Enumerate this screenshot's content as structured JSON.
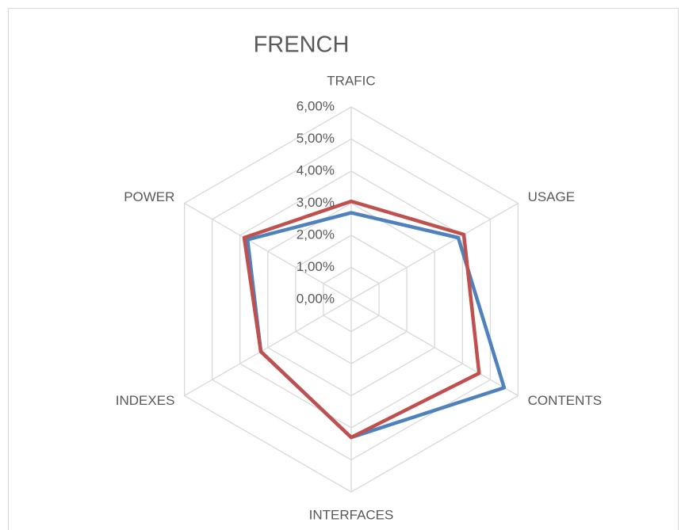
{
  "chart_data": {
    "type": "radar",
    "title": "FRENCH",
    "categories": [
      "TRAFIC",
      "USAGE",
      "CONTENTS",
      "INTERFACES",
      "INDEXES",
      "POWER"
    ],
    "series": [
      {
        "color": "#4f81bd",
        "values": [
          2.7,
          3.85,
          5.5,
          4.3,
          3.25,
          3.73
        ]
      },
      {
        "color": "#c0504d",
        "values": [
          3.06,
          4.05,
          4.6,
          4.3,
          3.25,
          3.85
        ]
      }
    ],
    "ylim": [
      0,
      6
    ],
    "yticks": [
      {
        "value": 0,
        "label": "0,00%"
      },
      {
        "value": 1,
        "label": "1,00%"
      },
      {
        "value": 2,
        "label": "2,00%"
      },
      {
        "value": 3,
        "label": "3,00%"
      },
      {
        "value": 4,
        "label": "4,00%"
      },
      {
        "value": 5,
        "label": "5,00%"
      },
      {
        "value": 6,
        "label": "6,00%"
      }
    ],
    "grid": true
  }
}
